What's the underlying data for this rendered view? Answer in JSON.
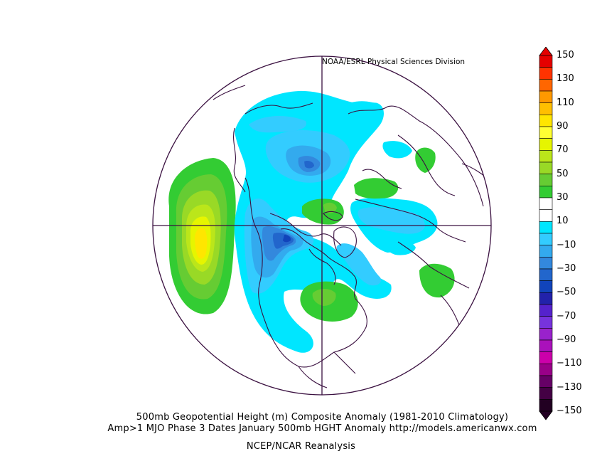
{
  "credit": "NOAA/ESRL Physical Sciences Division",
  "caption": {
    "line1": "500mb Geopotential Height (m) Composite Anomaly (1981-2010 Climatology)",
    "line2": "Amp>1 MJO Phase 3 Dates January 500mb HGHT Anomaly http://models.americanwx.com",
    "line3": "NCEP/NCAR Reanalysis"
  },
  "colorbar": {
    "labels": [
      "150",
      "130",
      "110",
      "90",
      "70",
      "50",
      "30",
      "10",
      "−10",
      "−30",
      "−50",
      "−70",
      "−90",
      "−110",
      "−130",
      "−150"
    ],
    "colors": [
      "#e50000",
      "#ff3300",
      "#ff6600",
      "#ff9900",
      "#ffbf00",
      "#ffe600",
      "#ffff33",
      "#e6f500",
      "#bbe61a",
      "#99d926",
      "#66cc33",
      "#33cc33",
      "#ffffff",
      "#ffffff",
      "#00e6ff",
      "#33ccff",
      "#33aaee",
      "#3388dd",
      "#2266cc",
      "#1144bb",
      "#2222aa",
      "#5522cc",
      "#7733dd",
      "#9922cc",
      "#aa11bb",
      "#cc00aa",
      "#990088",
      "#660066",
      "#440044",
      "#220022"
    ]
  },
  "map": {
    "projection": "north polar stereographic",
    "anomaly_regions": [
      {
        "name": "north-pacific-ridge",
        "sign": "positive",
        "peak": 70
      },
      {
        "name": "alaska-gulf-trough",
        "sign": "negative",
        "peak": -70
      },
      {
        "name": "canadian-arctic-trough",
        "sign": "negative",
        "peak": -50
      },
      {
        "name": "eurasian-arctic-trough",
        "sign": "negative",
        "peak": -30
      },
      {
        "name": "central-siberia-high",
        "sign": "positive",
        "peak": 30
      },
      {
        "name": "east-asia-high",
        "sign": "positive",
        "peak": 30
      },
      {
        "name": "north-atlantic-high",
        "sign": "positive",
        "peak": 30
      },
      {
        "name": "greenland-high",
        "sign": "positive",
        "peak": 30
      },
      {
        "name": "east-us-high",
        "sign": "positive",
        "peak": 30
      }
    ]
  }
}
